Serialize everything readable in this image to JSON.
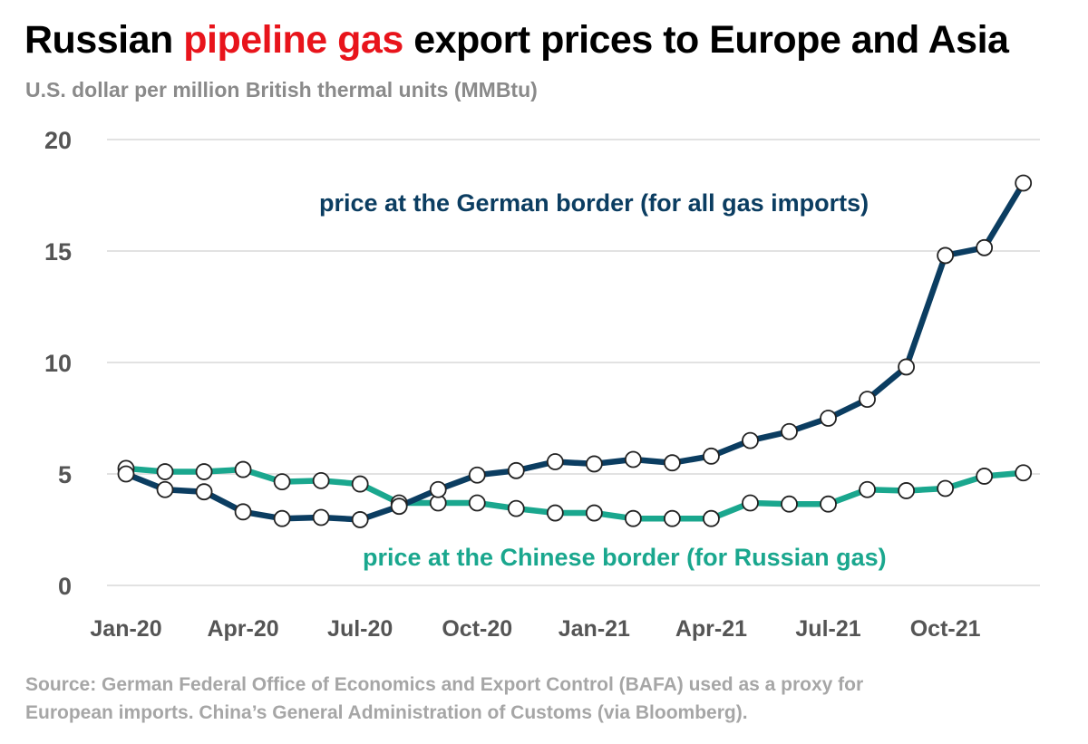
{
  "header": {
    "title_before": "Russian",
    "title_highlight": "pipeline gas",
    "title_after": "export prices to Europe and Asia",
    "subtitle": "U.S. dollar per million British thermal units (MMBtu)"
  },
  "colors": {
    "highlight": "#e8141b",
    "german": "#0b3d61",
    "chinese": "#1aa78e",
    "grid": "#d9d9d9",
    "axis_text": "#555555",
    "marker_fill": "#ffffff",
    "marker_stroke": "#222222"
  },
  "chart_data": {
    "type": "line",
    "title": "Russian pipeline gas export prices to Europe and Asia",
    "ylabel": "U.S. dollar per million British thermal units (MMBtu)",
    "xlabel": "",
    "ylim": [
      0,
      20
    ],
    "yticks": [
      0,
      5,
      10,
      15,
      20
    ],
    "grid": true,
    "x": [
      "Jan-20",
      "Feb-20",
      "Mar-20",
      "Apr-20",
      "May-20",
      "Jun-20",
      "Jul-20",
      "Aug-20",
      "Sep-20",
      "Oct-20",
      "Nov-20",
      "Dec-20",
      "Jan-21",
      "Feb-21",
      "Mar-21",
      "Apr-21",
      "May-21",
      "Jun-21",
      "Jul-21",
      "Aug-21",
      "Sep-21",
      "Oct-21",
      "Nov-21",
      "Dec-21"
    ],
    "xtick_labels": [
      "Jan-20",
      "Apr-20",
      "Jul-20",
      "Oct-20",
      "Jan-21",
      "Apr-21",
      "Jul-21",
      "Oct-21"
    ],
    "xtick_indices": [
      0,
      3,
      6,
      9,
      12,
      15,
      18,
      21
    ],
    "series": [
      {
        "name": "price at the German border (for all gas imports)",
        "label": "price at the German border (for all gas imports)",
        "color": "#0b3d61",
        "values": [
          5.0,
          4.3,
          4.2,
          3.3,
          3.0,
          3.05,
          2.95,
          3.55,
          4.3,
          4.95,
          5.15,
          5.55,
          5.45,
          5.65,
          5.5,
          5.8,
          6.5,
          6.9,
          7.5,
          8.35,
          9.8,
          14.8,
          15.15,
          18.05
        ]
      },
      {
        "name": "price at the Chinese border (for Russian gas)",
        "label": "price at the Chinese border (for Russian gas)",
        "color": "#1aa78e",
        "values": [
          5.25,
          5.1,
          5.1,
          5.2,
          4.65,
          4.7,
          4.55,
          3.7,
          3.7,
          3.7,
          3.45,
          3.25,
          3.25,
          3.0,
          3.0,
          3.0,
          3.7,
          3.65,
          3.65,
          4.3,
          4.25,
          4.35,
          4.9,
          5.05
        ]
      }
    ]
  },
  "footer": {
    "source_line1": "Source: German Federal Office of Economics and Export Control (BAFA) used as a proxy for",
    "source_line2": "European imports. China’s General Administration of Customs (via Bloomberg)."
  }
}
